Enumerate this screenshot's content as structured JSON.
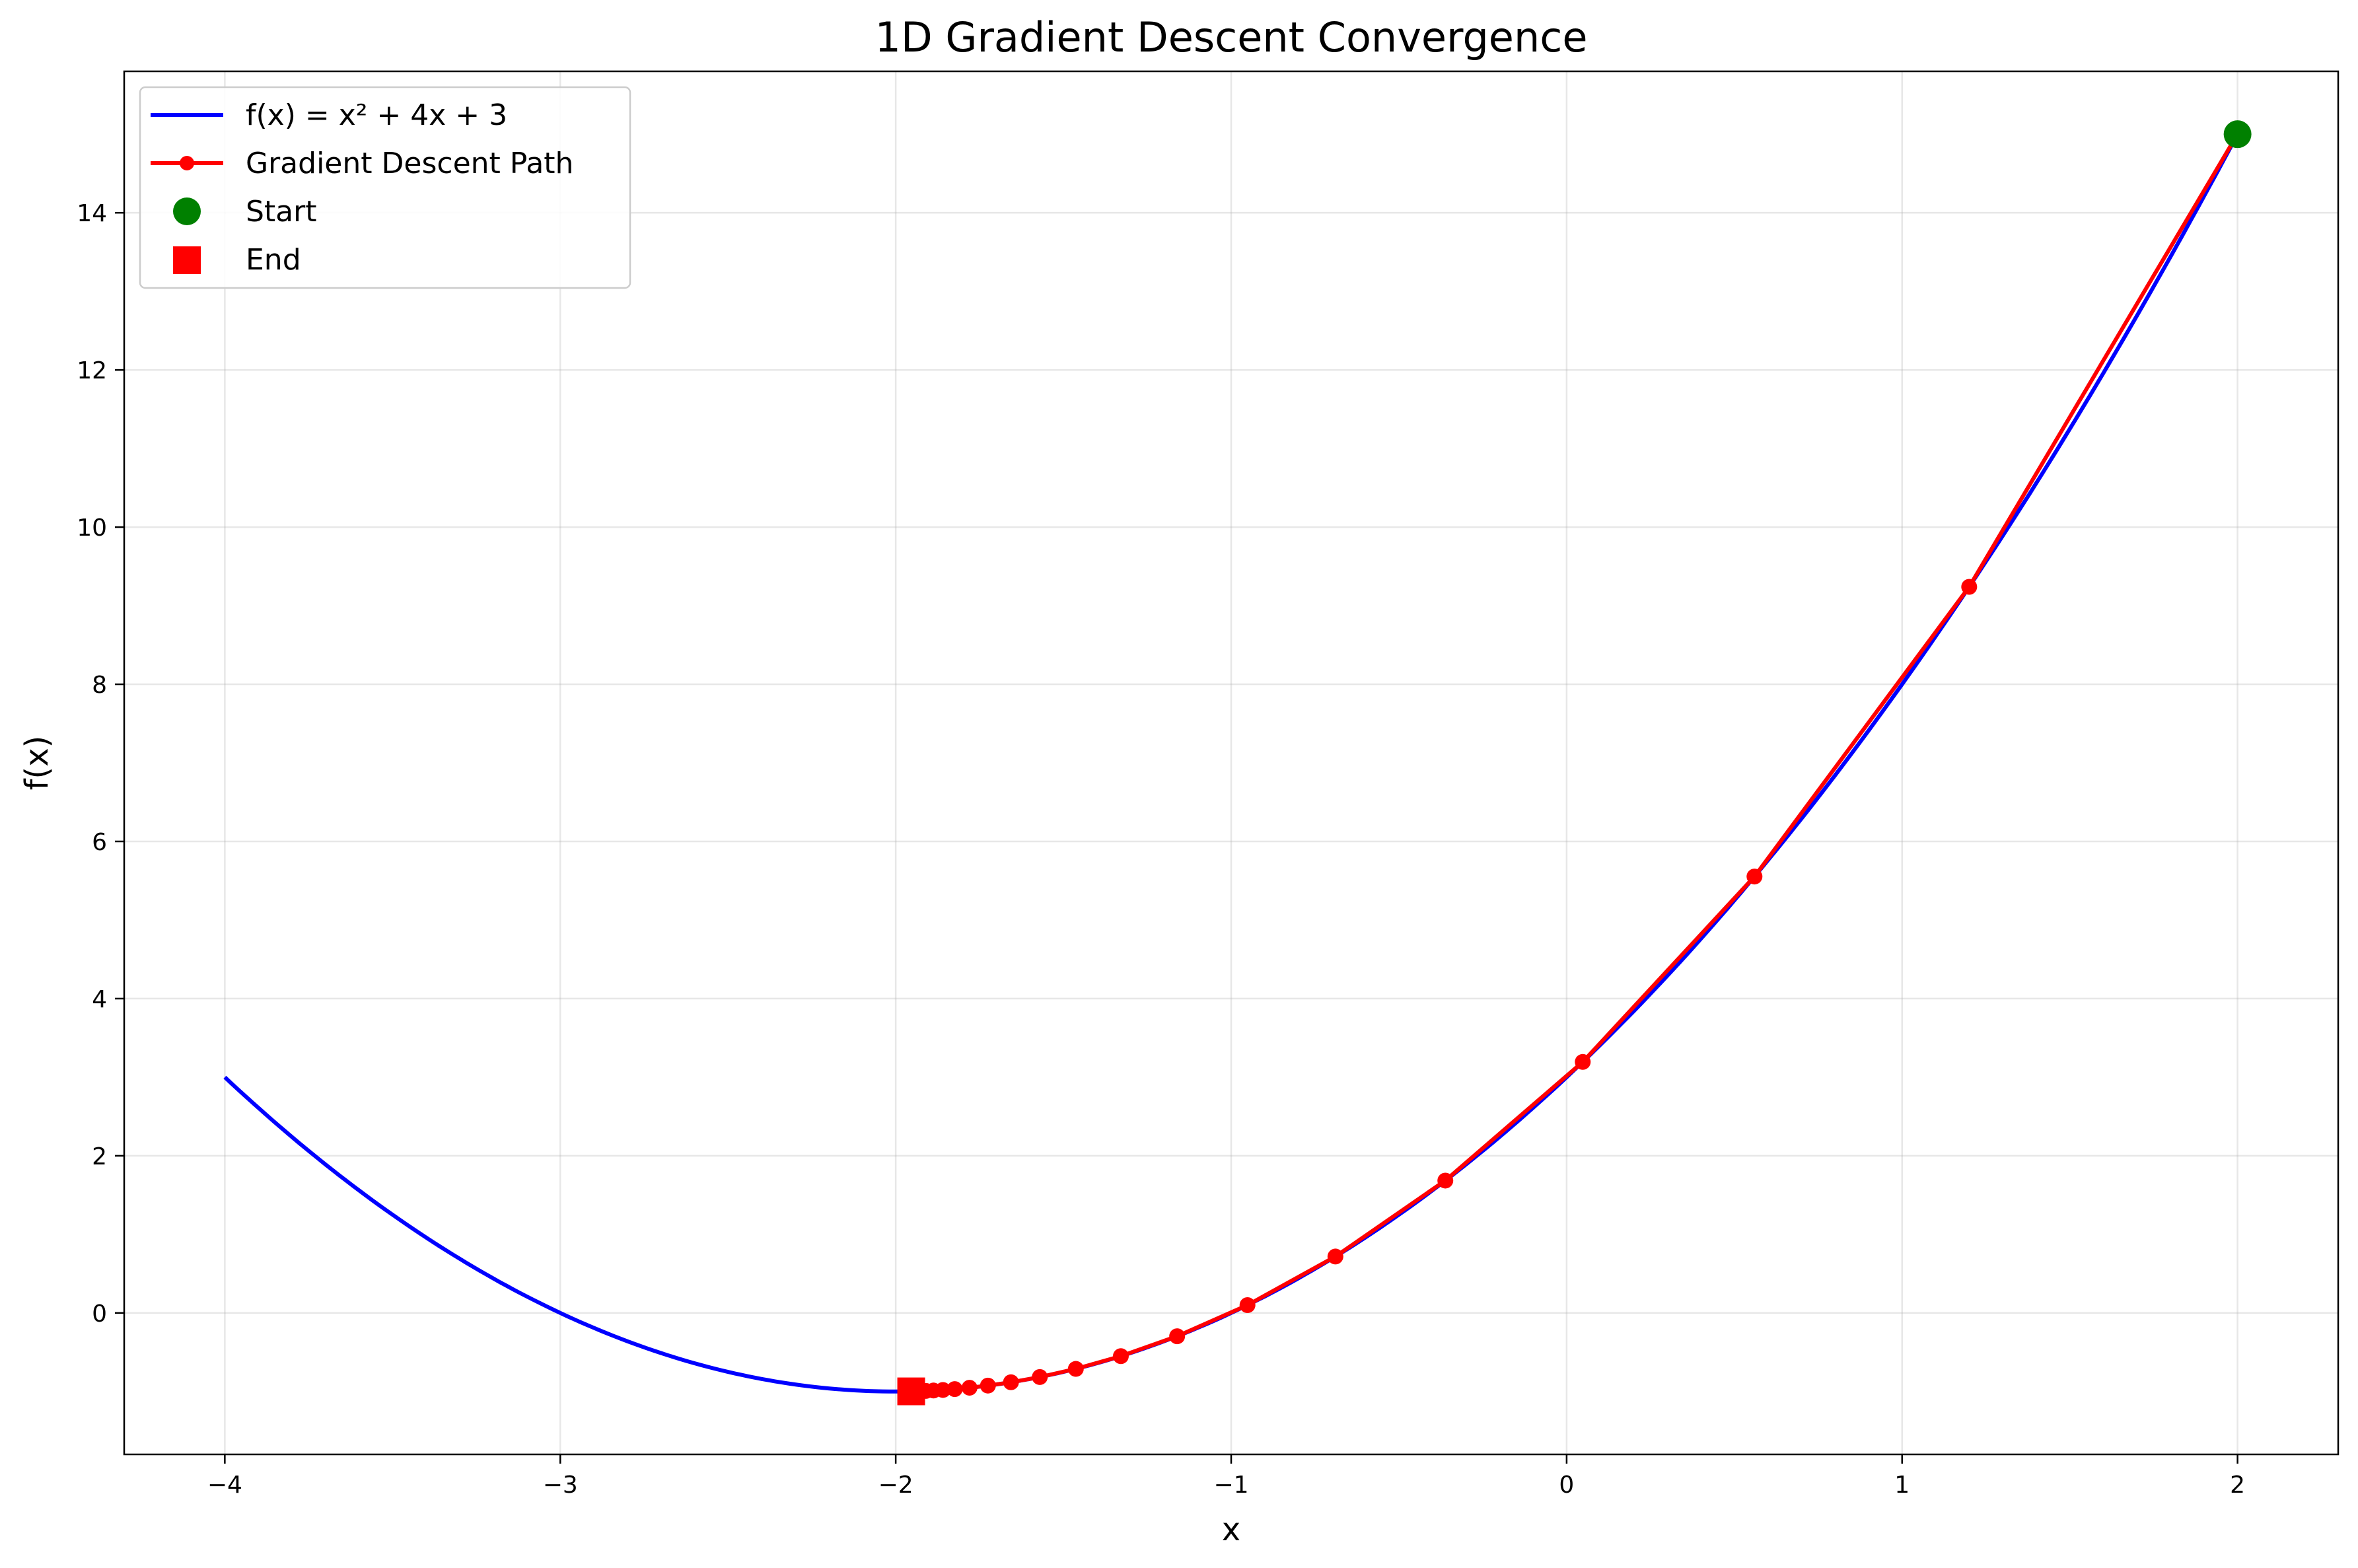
{
  "chart_data": {
    "type": "line",
    "title": "1D Gradient Descent Convergence",
    "xlabel": "x",
    "ylabel": "f(x)",
    "xlim": [
      -4.3,
      2.3
    ],
    "ylim": [
      -1.8,
      15.8
    ],
    "xticks": [
      -4,
      -3,
      -2,
      -1,
      0,
      1,
      2
    ],
    "yticks": [
      0,
      2,
      4,
      6,
      8,
      10,
      12,
      14
    ],
    "xtick_labels": [
      "−4",
      "−3",
      "−2",
      "−1",
      "0",
      "1",
      "2"
    ],
    "ytick_labels": [
      "0",
      "2",
      "4",
      "6",
      "8",
      "10",
      "12",
      "14"
    ],
    "grid": true,
    "legend_position": "top-left",
    "series": [
      {
        "name": "f(x) = x² + 4x + 3",
        "kind": "curve",
        "function": "x^2 + 4x + 3",
        "x_range": [
          -4,
          2
        ],
        "color": "#0000ff"
      },
      {
        "name": "Gradient Descent Path",
        "kind": "line-markers",
        "color": "#ff0000",
        "x": [
          2.0,
          1.2,
          0.56,
          0.048,
          -0.3616,
          -0.6893,
          -0.9514,
          -1.1611,
          -1.3289,
          -1.4631,
          -1.5705,
          -1.6564,
          -1.7251,
          -1.7801,
          -1.8241,
          -1.8593,
          -1.8874,
          -1.9099,
          -1.9279,
          -1.9424,
          -1.9539
        ],
        "y": [
          15.0,
          9.24,
          5.5536,
          3.1943,
          1.6843,
          0.7179,
          0.0994,
          -0.2964,
          -0.5497,
          -0.7118,
          -0.8156,
          -0.882,
          -0.9245,
          -0.9517,
          -0.9691,
          -0.9802,
          -0.9873,
          -0.9919,
          -0.9948,
          -0.9967,
          -0.9979
        ]
      },
      {
        "name": "Start",
        "kind": "marker-circle",
        "color": "#008000",
        "x": [
          2.0
        ],
        "y": [
          15.0
        ]
      },
      {
        "name": "End",
        "kind": "marker-square",
        "color": "#ff0000",
        "x": [
          -1.9539
        ],
        "y": [
          -0.9979
        ]
      }
    ]
  }
}
